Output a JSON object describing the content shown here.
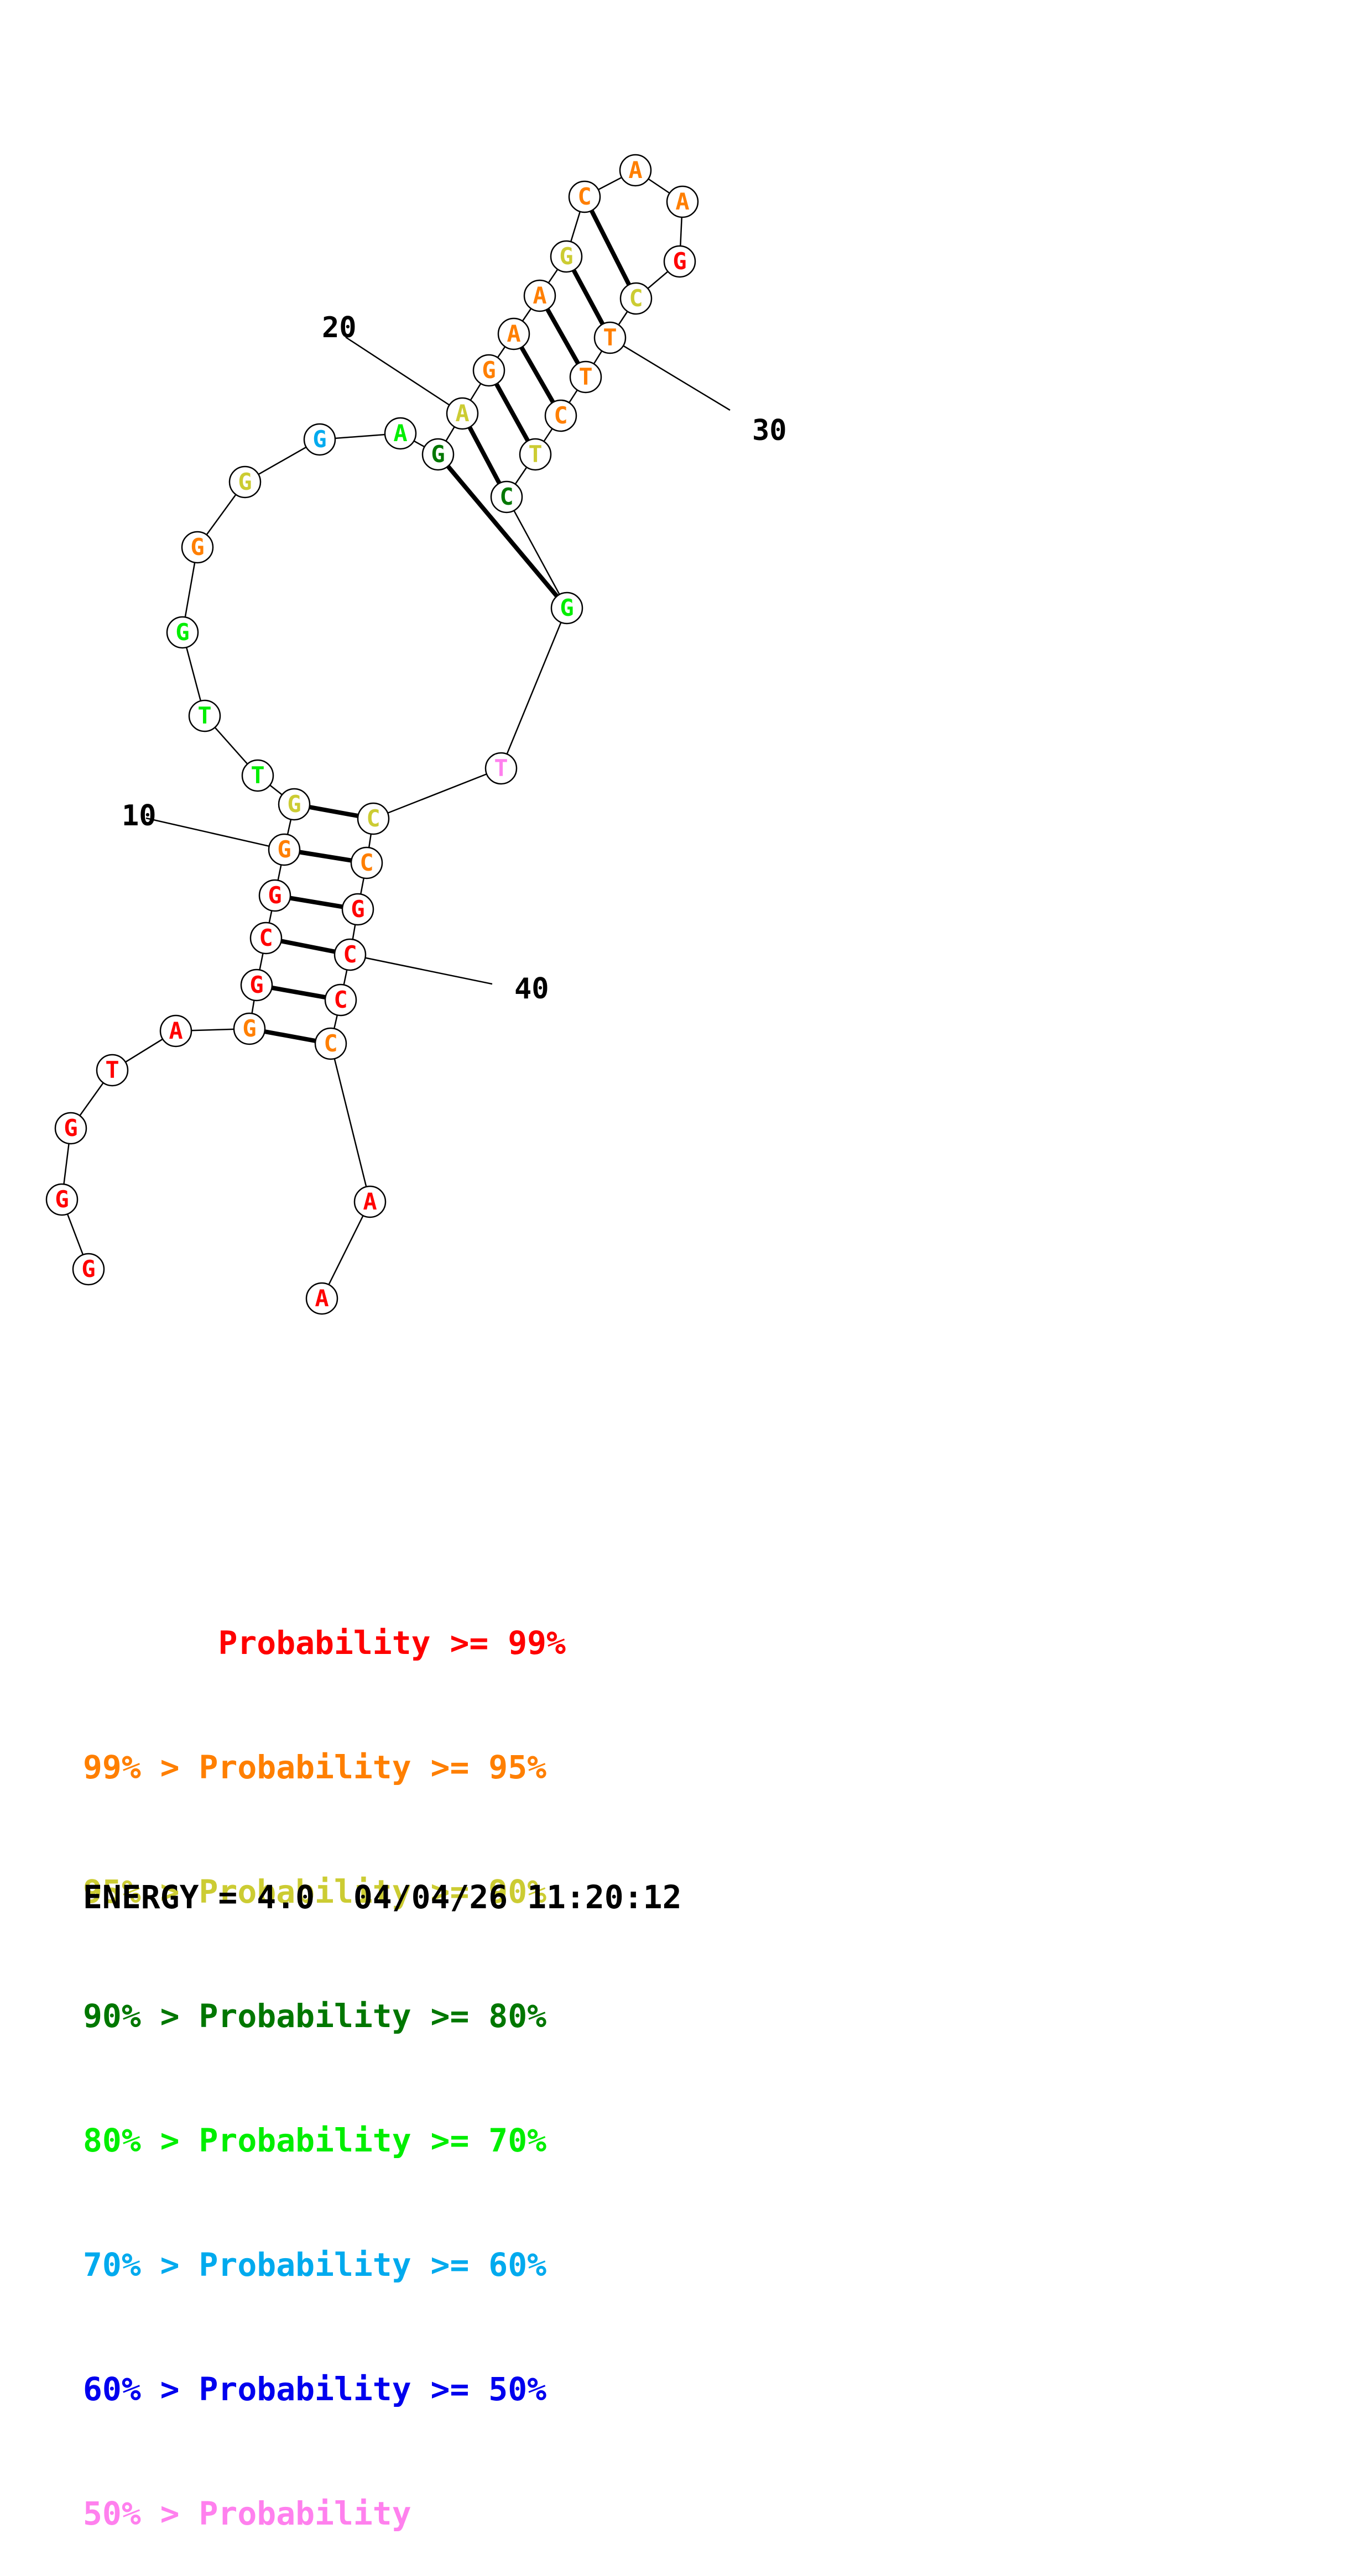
{
  "colors": {
    "p99": "#ff0000",
    "p95": "#ff7f00",
    "p90": "#cccc33",
    "p80": "#007700",
    "p70": "#00ee00",
    "p60": "#00aaee",
    "p50": "#0000ee",
    "plow": "#ff80ee"
  },
  "structure": {
    "sequence": [
      "G",
      "G",
      "G",
      "T",
      "A",
      "G",
      "G",
      "C",
      "G",
      "G",
      "G",
      "T",
      "T",
      "G",
      "G",
      "G",
      "G",
      "A",
      "G",
      "A",
      "G",
      "A",
      "A",
      "G",
      "C",
      "A",
      "A",
      "G",
      "C",
      "T",
      "T",
      "C",
      "T",
      "C",
      "G",
      "T",
      "C",
      "C",
      "G",
      "C",
      "C",
      "C",
      "A",
      "A"
    ],
    "prob_class": [
      "p99",
      "p99",
      "p99",
      "p99",
      "p99",
      "p95",
      "p99",
      "p99",
      "p99",
      "p95",
      "p90",
      "p70",
      "p70",
      "p70",
      "p95",
      "p90",
      "p60",
      "p70",
      "p80",
      "p90",
      "p95",
      "p95",
      "p95",
      "p90",
      "p95",
      "p95",
      "p95",
      "p99",
      "p90",
      "p95",
      "p95",
      "p95",
      "p90",
      "p80",
      "p70",
      "plow",
      "p90",
      "p95",
      "p99",
      "p99",
      "p99",
      "p95",
      "p99",
      "p99"
    ],
    "pairs": [
      [
        6,
        42
      ],
      [
        7,
        41
      ],
      [
        8,
        40
      ],
      [
        9,
        39
      ],
      [
        10,
        38
      ],
      [
        11,
        37
      ],
      [
        19,
        35
      ],
      [
        20,
        34
      ],
      [
        21,
        33
      ],
      [
        22,
        32
      ],
      [
        23,
        31
      ],
      [
        24,
        30
      ],
      [
        25,
        29
      ]
    ],
    "position_labels": [
      {
        "nuc": 10,
        "text": "10"
      },
      {
        "nuc": 20,
        "text": "20"
      },
      {
        "nuc": 30,
        "text": "30"
      },
      {
        "nuc": 40,
        "text": "40"
      }
    ]
  },
  "legend": [
    {
      "prefix": "       ",
      "text": "Probability >= 99%",
      "color_key": "p99"
    },
    {
      "prefix": "99% > ",
      "text": "Probability >= 95%",
      "color_key": "p95"
    },
    {
      "prefix": "95% > ",
      "text": "Probability >= 90%",
      "color_key": "p90"
    },
    {
      "prefix": "90% > ",
      "text": "Probability >= 80%",
      "color_key": "p80"
    },
    {
      "prefix": "80% > ",
      "text": "Probability >= 70%",
      "color_key": "p70"
    },
    {
      "prefix": "70% > ",
      "text": "Probability >= 60%",
      "color_key": "p60"
    },
    {
      "prefix": "60% > ",
      "text": "Probability >= 50%",
      "color_key": "p50"
    },
    {
      "prefix": "50% > ",
      "text": "Probability",
      "color_key": "plow"
    }
  ],
  "energy_line": "ENERGY = 4.0  04/04/26 11:20:12"
}
